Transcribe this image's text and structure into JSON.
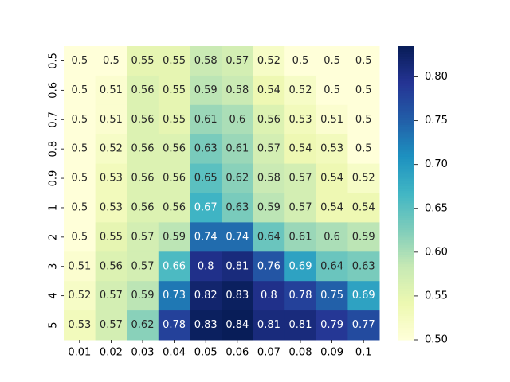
{
  "chart_data": {
    "type": "heatmap",
    "title": "",
    "xlabel": "",
    "ylabel": "",
    "x_categories": [
      "0.01",
      "0.02",
      "0.03",
      "0.04",
      "0.05",
      "0.06",
      "0.07",
      "0.08",
      "0.09",
      "0.1"
    ],
    "y_categories": [
      "0.5",
      "0.6",
      "0.7",
      "0.8",
      "0.9",
      "1",
      "2",
      "3",
      "4",
      "5"
    ],
    "values": [
      [
        0.5,
        0.5,
        0.55,
        0.55,
        0.58,
        0.57,
        0.52,
        0.5,
        0.5,
        0.5
      ],
      [
        0.5,
        0.51,
        0.56,
        0.55,
        0.59,
        0.58,
        0.54,
        0.52,
        0.5,
        0.5
      ],
      [
        0.5,
        0.51,
        0.56,
        0.55,
        0.61,
        0.6,
        0.56,
        0.53,
        0.51,
        0.5
      ],
      [
        0.5,
        0.52,
        0.56,
        0.56,
        0.63,
        0.61,
        0.57,
        0.54,
        0.53,
        0.5
      ],
      [
        0.5,
        0.53,
        0.56,
        0.56,
        0.65,
        0.62,
        0.58,
        0.57,
        0.54,
        0.52
      ],
      [
        0.5,
        0.53,
        0.56,
        0.56,
        0.67,
        0.63,
        0.59,
        0.57,
        0.54,
        0.54
      ],
      [
        0.5,
        0.55,
        0.57,
        0.59,
        0.74,
        0.74,
        0.64,
        0.61,
        0.6,
        0.59
      ],
      [
        0.51,
        0.56,
        0.57,
        0.66,
        0.8,
        0.81,
        0.76,
        0.69,
        0.64,
        0.63
      ],
      [
        0.52,
        0.57,
        0.59,
        0.73,
        0.82,
        0.83,
        0.8,
        0.78,
        0.75,
        0.69
      ],
      [
        0.53,
        0.57,
        0.62,
        0.78,
        0.83,
        0.84,
        0.81,
        0.81,
        0.79,
        0.77
      ]
    ],
    "colorscale": "YlGnBu",
    "colorbar": {
      "min": 0.5,
      "max": 0.835,
      "ticks": [
        "0.50",
        "0.55",
        "0.60",
        "0.65",
        "0.70",
        "0.75",
        "0.80"
      ]
    },
    "grid": false
  }
}
